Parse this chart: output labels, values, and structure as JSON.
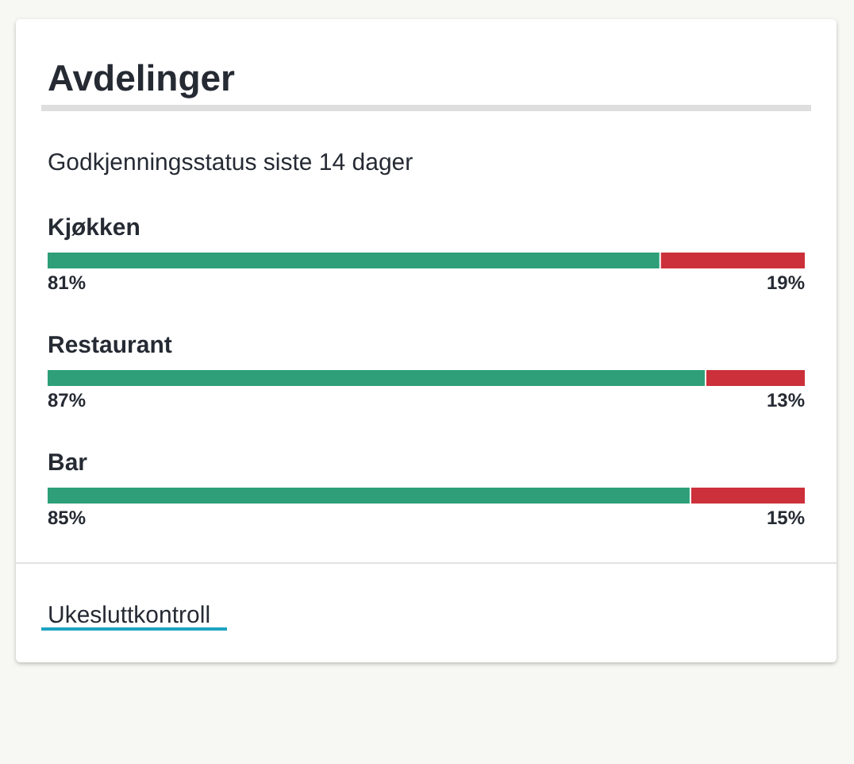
{
  "chart_data": {
    "type": "bar",
    "title": "Avdelinger",
    "subtitle": "Godkjenningsstatus siste 14 dager",
    "orientation": "horizontal",
    "stacked": true,
    "tick_labels": "y",
    "xlim": [
      0,
      100
    ],
    "categories": [
      "Kjøkken",
      "Restaurant",
      "Bar"
    ],
    "series": [
      {
        "color": "#2e9f78",
        "values": [
          81,
          87,
          85
        ],
        "value_labels": [
          "81%",
          "87%",
          "85%"
        ]
      },
      {
        "color": "#cc303a",
        "values": [
          19,
          13,
          15
        ],
        "value_labels": [
          "19%",
          "13%",
          "15%"
        ]
      }
    ],
    "annotations": [
      "Ukesluttkontroll"
    ]
  }
}
